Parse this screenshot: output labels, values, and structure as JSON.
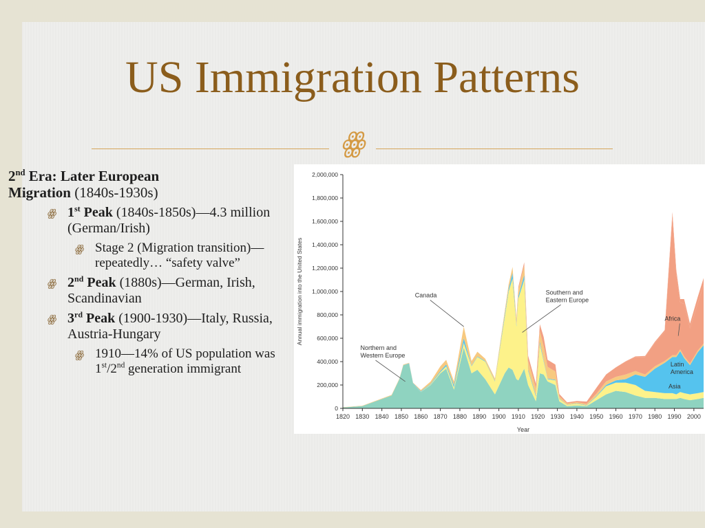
{
  "slide": {
    "title": "US Immigration Patterns",
    "divider_glyph": "ꙮ",
    "heading": {
      "prefix": "2",
      "sup": "nd",
      "bold_rest": " Era: Later European",
      "bold_line2": "Migration",
      "normal": " (1840s-1930s)"
    },
    "bullets": [
      {
        "num": "1",
        "sup": "st",
        "bold": " Peak",
        "text": " (1840s-1850s)—4.3 million (German/Irish)"
      },
      {
        "text": "Stage 2 (Migration transition)—repeatedly… “safety valve”"
      },
      {
        "num": "2",
        "sup": "nd",
        "bold": " Peak",
        "text": " (1880s)—German, Irish, Scandinavian"
      },
      {
        "num": "3",
        "sup": "rd",
        "bold": " Peak",
        "text": " (1900-1930)—Italy, Russia, Austria-Hungary"
      },
      {
        "pre": "1910—14% of US population was 1",
        "sup1": "st",
        "mid": "/2",
        "sup2": "nd",
        "post": " generation immigrant"
      }
    ],
    "bullet_glyph": "ꙮ",
    "colors": {
      "title": "#8b5d1c",
      "accent": "#d6a55a"
    }
  },
  "chart_data": {
    "type": "area",
    "title": "",
    "xlabel": "Year",
    "ylabel": "Annual immigration into the United States",
    "xlim": [
      1820,
      2005
    ],
    "ylim": [
      0,
      2000000
    ],
    "x_ticks": [
      1820,
      1830,
      1840,
      1850,
      1860,
      1870,
      1880,
      1890,
      1900,
      1910,
      1920,
      1930,
      1940,
      1950,
      1960,
      1970,
      1980,
      1990,
      2000
    ],
    "y_ticks": [
      0,
      200000,
      400000,
      600000,
      800000,
      1000000,
      1200000,
      1400000,
      1600000,
      1800000,
      2000000
    ],
    "y_tick_labels": [
      "0",
      "200,000",
      "400,000",
      "600,000",
      "800,000",
      "1,000,000",
      "1,200,000",
      "1,400,000",
      "1,600,000",
      "1,800,000",
      "2,000,000"
    ],
    "annotations": [
      {
        "text": [
          "Northern and",
          "Western Europe"
        ],
        "x": 1829,
        "y": 500000,
        "pointer": [
          1852,
          230000
        ]
      },
      {
        "text": [
          "Canada"
        ],
        "x": 1857,
        "y": 950000,
        "pointer": [
          1882,
          700000
        ]
      },
      {
        "text": [
          "Southern and",
          "Eastern Europe"
        ],
        "x": 1924,
        "y": 975000,
        "pointer": [
          1912,
          650000
        ]
      },
      {
        "text": [
          "Africa"
        ],
        "x": 1985,
        "y": 750000,
        "pointer": [
          1992,
          620000
        ]
      },
      {
        "text": [
          "Latin",
          "America"
        ],
        "x": 1988,
        "y": 360000,
        "pointer": null
      },
      {
        "text": [
          "Asia"
        ],
        "x": 1987,
        "y": 170000,
        "pointer": null
      }
    ],
    "x": [
      1820,
      1830,
      1840,
      1845,
      1849,
      1851,
      1854,
      1856,
      1860,
      1865,
      1870,
      1873,
      1877,
      1882,
      1886,
      1889,
      1893,
      1898,
      1903,
      1905,
      1907,
      1909,
      1910,
      1913,
      1915,
      1919,
      1921,
      1923,
      1925,
      1929,
      1931,
      1935,
      1940,
      1945,
      1950,
      1955,
      1960,
      1965,
      1970,
      1975,
      1980,
      1985,
      1989,
      1991,
      1993,
      1995,
      1998,
      2002,
      2005
    ],
    "series": [
      {
        "name": "Northern and Western Europe",
        "color": "#8fd3c0",
        "values": [
          8000,
          20000,
          80000,
          110000,
          250000,
          370000,
          380000,
          210000,
          140000,
          200000,
          300000,
          340000,
          160000,
          520000,
          300000,
          330000,
          250000,
          120000,
          300000,
          350000,
          330000,
          250000,
          240000,
          340000,
          200000,
          60000,
          300000,
          290000,
          230000,
          200000,
          60000,
          20000,
          25000,
          20000,
          70000,
          120000,
          150000,
          140000,
          110000,
          90000,
          90000,
          80000,
          80000,
          80000,
          90000,
          80000,
          70000,
          80000,
          90000
        ]
      },
      {
        "name": "Southern and Eastern Europe",
        "color": "#fdf28a",
        "values": [
          0,
          0,
          0,
          0,
          0,
          0,
          0,
          0,
          2000,
          5000,
          10000,
          20000,
          20000,
          40000,
          60000,
          110000,
          150000,
          110000,
          480000,
          650000,
          780000,
          450000,
          700000,
          760000,
          120000,
          40000,
          250000,
          110000,
          20000,
          40000,
          20000,
          10000,
          15000,
          5000,
          30000,
          70000,
          70000,
          80000,
          90000,
          60000,
          50000,
          50000,
          50000,
          40000,
          50000,
          50000,
          50000,
          50000,
          50000
        ]
      },
      {
        "name": "Asia",
        "color": "#55c3ee",
        "values": [
          0,
          0,
          0,
          0,
          0,
          0,
          5000,
          5000,
          5000,
          5000,
          10000,
          15000,
          20000,
          40000,
          5000,
          5000,
          5000,
          5000,
          20000,
          20000,
          50000,
          10000,
          20000,
          40000,
          10000,
          10000,
          20000,
          10000,
          5000,
          5000,
          3000,
          2000,
          3000,
          3000,
          5000,
          10000,
          20000,
          30000,
          90000,
          120000,
          200000,
          260000,
          310000,
          320000,
          350000,
          300000,
          250000,
          350000,
          400000
        ]
      },
      {
        "name": "Canada",
        "color": "#f7c980",
        "values": [
          2000,
          3000,
          5000,
          5000,
          5000,
          5000,
          5000,
          5000,
          10000,
          20000,
          40000,
          40000,
          30000,
          100000,
          40000,
          40000,
          20000,
          20000,
          30000,
          40000,
          50000,
          60000,
          60000,
          80000,
          80000,
          60000,
          90000,
          120000,
          100000,
          70000,
          20000,
          10000,
          10000,
          10000,
          20000,
          30000,
          30000,
          40000,
          30000,
          20000,
          20000,
          15000,
          15000,
          15000,
          15000,
          15000,
          15000,
          15000,
          15000
        ]
      },
      {
        "name": "Latin America",
        "color": "#f2a083",
        "values": [
          0,
          0,
          0,
          0,
          0,
          0,
          0,
          0,
          0,
          0,
          0,
          0,
          0,
          0,
          0,
          0,
          0,
          0,
          0,
          0,
          0,
          0,
          20000,
          30000,
          40000,
          40000,
          60000,
          80000,
          60000,
          60000,
          20000,
          10000,
          10000,
          20000,
          50000,
          60000,
          80000,
          110000,
          120000,
          150000,
          200000,
          250000,
          1200000,
          700000,
          400000,
          450000,
          300000,
          400000,
          500000
        ]
      },
      {
        "name": "Africa",
        "color": "#f2a083",
        "values": [
          0,
          0,
          0,
          0,
          0,
          0,
          0,
          0,
          0,
          0,
          0,
          0,
          0,
          0,
          0,
          0,
          0,
          0,
          0,
          0,
          0,
          0,
          0,
          0,
          0,
          0,
          0,
          0,
          0,
          0,
          0,
          0,
          0,
          0,
          1000,
          1000,
          2000,
          3000,
          5000,
          8000,
          10000,
          15000,
          25000,
          30000,
          30000,
          40000,
          40000,
          60000,
          60000
        ]
      }
    ]
  }
}
